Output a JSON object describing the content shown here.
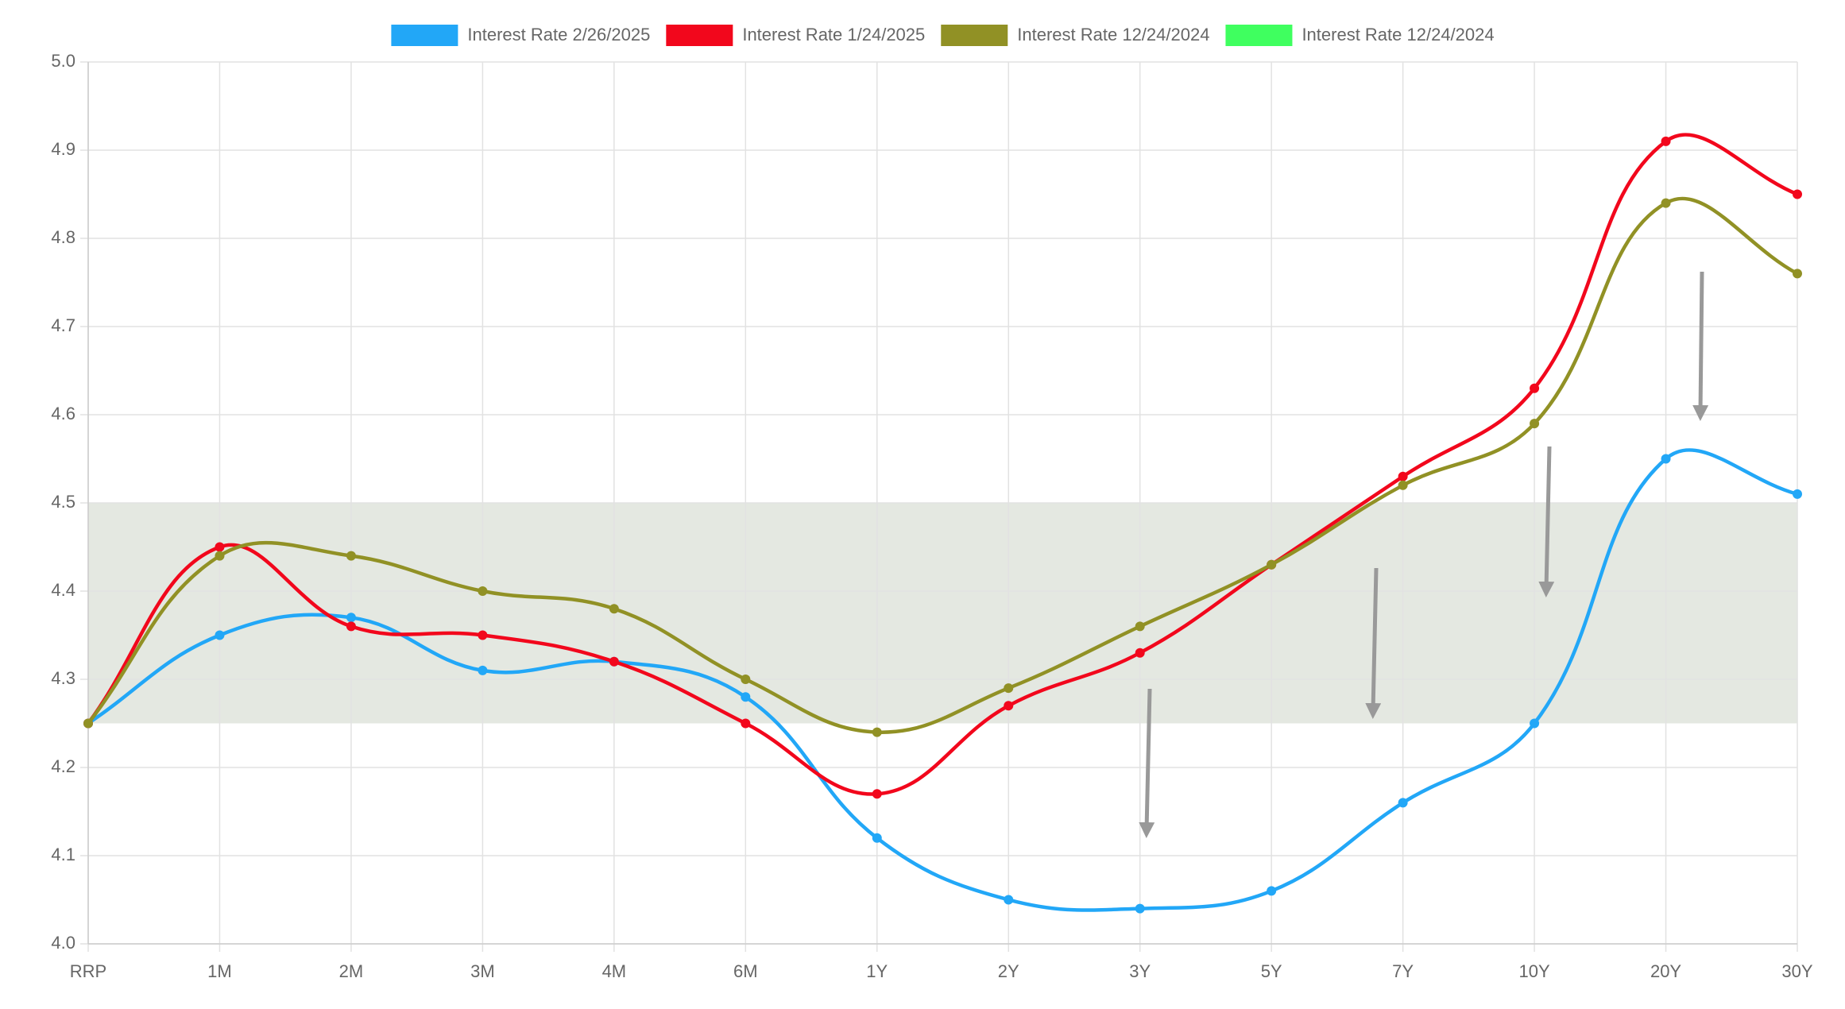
{
  "chart_data": {
    "type": "line",
    "categories": [
      "RRP",
      "1M",
      "2M",
      "3M",
      "4M",
      "6M",
      "1Y",
      "2Y",
      "3Y",
      "5Y",
      "7Y",
      "10Y",
      "20Y",
      "30Y"
    ],
    "series": [
      {
        "name": "Interest Rate 2/26/2025",
        "color": "#22a7f7",
        "values": [
          4.25,
          4.35,
          4.37,
          4.31,
          4.32,
          4.28,
          4.12,
          4.05,
          4.04,
          4.06,
          4.16,
          4.25,
          4.55,
          4.51
        ]
      },
      {
        "name": "Interest Rate 1/24/2025",
        "color": "#f2071c",
        "values": [
          4.25,
          4.45,
          4.36,
          4.35,
          4.32,
          4.25,
          4.17,
          4.27,
          4.33,
          4.43,
          4.53,
          4.63,
          4.91,
          4.85
        ]
      },
      {
        "name": "Interest Rate 12/24/2024",
        "color": "#919125",
        "values": [
          4.25,
          4.44,
          4.44,
          4.4,
          4.38,
          4.3,
          4.24,
          4.29,
          4.36,
          4.43,
          4.52,
          4.59,
          4.84,
          4.76
        ]
      },
      {
        "name": "Interest Rate 12/24/2024",
        "color": "#3fff5f",
        "values": [
          null,
          null,
          null,
          null,
          null,
          null,
          null,
          null,
          null,
          null,
          null,
          null,
          null,
          null
        ]
      }
    ],
    "shaded_range": [
      4.25,
      4.5
    ],
    "shaded_color": "#e4e8e1",
    "ylim": [
      4.0,
      5.0
    ],
    "yticks": [
      {
        "value": 4.0,
        "label": "4.0"
      },
      4.1,
      4.2,
      4.3,
      4.4,
      4.5,
      4.6,
      4.7,
      4.8,
      4.9,
      {
        "value": 5.0,
        "label": "5.0"
      }
    ],
    "grid": true,
    "legend": "top"
  }
}
